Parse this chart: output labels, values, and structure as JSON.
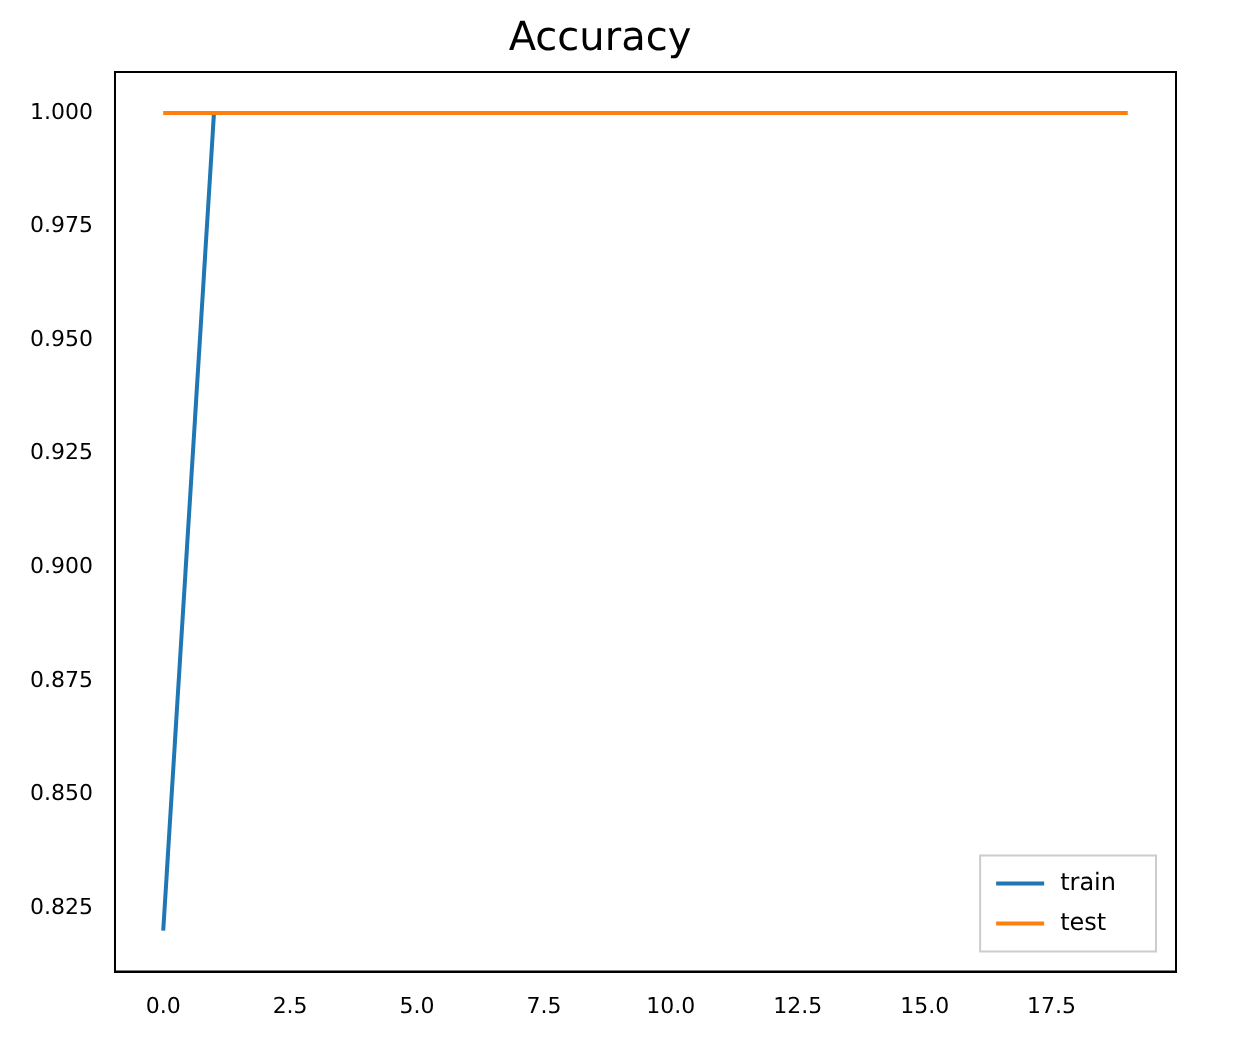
{
  "chart_data": {
    "type": "line",
    "title": "Accuracy",
    "x": [
      0,
      1,
      2,
      3,
      4,
      5,
      6,
      7,
      8,
      9,
      10,
      11,
      12,
      13,
      14,
      15,
      16,
      17,
      18,
      19
    ],
    "series": [
      {
        "name": "train",
        "color": "#1f77b4",
        "values": [
          0.82,
          1,
          null,
          null,
          null,
          null,
          null,
          null,
          null,
          null,
          null,
          null,
          null,
          null,
          null,
          null,
          null,
          null,
          null,
          null
        ]
      },
      {
        "name": "test",
        "color": "#ff7f0e",
        "values": [
          1,
          1,
          1,
          1,
          1,
          1,
          1,
          1,
          1,
          1,
          1,
          1,
          1,
          1,
          1,
          1,
          1,
          1,
          1,
          1
        ]
      }
    ],
    "xlim": [
      -0.95,
      19.95
    ],
    "xticks": [
      {
        "value": 0,
        "label": "0.0"
      },
      {
        "value": 2.5,
        "label": "2.5"
      },
      {
        "value": 5,
        "label": "5.0"
      },
      {
        "value": 7.5,
        "label": "7.5"
      },
      {
        "value": 10,
        "label": "10.0"
      },
      {
        "value": 12.5,
        "label": "12.5"
      },
      {
        "value": 15,
        "label": "15.0"
      },
      {
        "value": 17.5,
        "label": "17.5"
      }
    ],
    "ylim": [
      0.811,
      1.009
    ],
    "yticks": [
      {
        "value": 0.825,
        "label": "0.825"
      },
      {
        "value": 0.85,
        "label": "0.850"
      },
      {
        "value": 0.875,
        "label": "0.875"
      },
      {
        "value": 0.9,
        "label": "0.900"
      },
      {
        "value": 0.925,
        "label": "0.925"
      },
      {
        "value": 0.95,
        "label": "0.950"
      },
      {
        "value": 0.975,
        "label": "0.975"
      },
      {
        "value": 1,
        "label": "1.000"
      }
    ],
    "grid": false,
    "legend": "bottom right",
    "marker": "none",
    "line_style": "solid"
  }
}
